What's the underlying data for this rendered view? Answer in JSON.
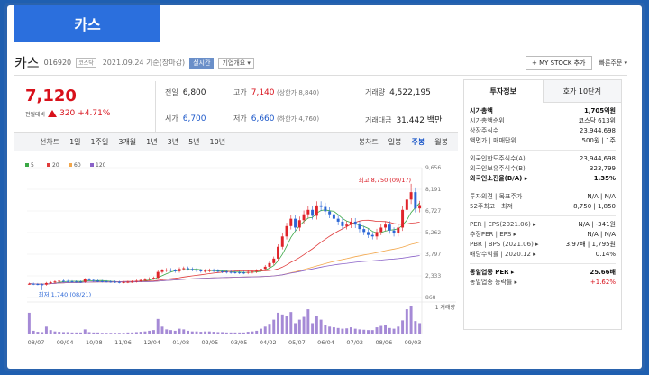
{
  "banner": {
    "title": "카스"
  },
  "header": {
    "name": "카스",
    "code": "016920",
    "market": "코스닥",
    "date": "2021.09.24 기준(장마감)",
    "tag_realtime": "실시간",
    "tag_info": "기업개요 ▾",
    "mystock": "+ MY STOCK 추가",
    "quickbuy": "빠른주문 ▾"
  },
  "price": {
    "current": "7,120",
    "change_label": "전일대비",
    "change": "320",
    "rate": "+4.71%"
  },
  "quote": {
    "prev_close": {
      "label": "전일",
      "value": "6,800"
    },
    "high": {
      "label": "고가",
      "value": "7,140",
      "sub": "(상한가 8,840)"
    },
    "volume": {
      "label": "거래량",
      "value": "4,522,195"
    },
    "open": {
      "label": "시가",
      "value": "6,700"
    },
    "low": {
      "label": "저가",
      "value": "6,660",
      "sub": "(하한가 4,760)"
    },
    "amount": {
      "label": "거래대금",
      "value": "31,442 백만"
    }
  },
  "periods": {
    "label": "선차트",
    "items": [
      "1일",
      "1주일",
      "3개월",
      "1년",
      "3년",
      "5년",
      "10년"
    ],
    "active_index": 2,
    "candle_label": "봉차트",
    "candle_items": [
      "일봉",
      "주봉",
      "월봉"
    ],
    "candle_active_index": 1
  },
  "chart_data": {
    "type": "candlestick",
    "legend": [
      {
        "name": "5",
        "color": "#3aa845"
      },
      {
        "name": "20",
        "color": "#e03b3b"
      },
      {
        "name": "60",
        "color": "#f2a64a"
      },
      {
        "name": "120",
        "color": "#8a62c8"
      }
    ],
    "y_ticks": [
      "9,656",
      "8,191",
      "6,727",
      "5,262",
      "3,797",
      "2,333",
      "868"
    ],
    "y_tick_values": [
      9656,
      8191,
      6727,
      5262,
      3797,
      2333,
      868
    ],
    "ylim": [
      868,
      9656
    ],
    "x_ticks": [
      "08/07",
      "09/04",
      "10/08",
      "11/06",
      "12/04",
      "01/08",
      "02/05",
      "03/05",
      "04/02",
      "05/07",
      "06/04",
      "07/02",
      "08/06",
      "09/03"
    ],
    "max_label": "최고 8,750 (09/17)",
    "min_label": "최저 1,740 (08/21)",
    "volume_label": "1 거래량",
    "closes": [
      1800,
      1780,
      1760,
      1740,
      1850,
      1900,
      1950,
      2000,
      1980,
      1960,
      1950,
      1940,
      1930,
      2100,
      2050,
      2000,
      1980,
      1960,
      1950,
      1940,
      1920,
      1900,
      1910,
      1930,
      1950,
      2000,
      2050,
      2100,
      2150,
      2200,
      2600,
      2700,
      2750,
      2700,
      2650,
      2800,
      2850,
      2800,
      2750,
      2700,
      2650,
      2680,
      2720,
      2680,
      2650,
      2620,
      2600,
      2580,
      2570,
      2560,
      2550,
      2600,
      2620,
      2680,
      2800,
      2950,
      3200,
      3500,
      4300,
      5000,
      5700,
      6200,
      5600,
      6100,
      6500,
      6800,
      6400,
      7100,
      7000,
      6700,
      6500,
      6200,
      6000,
      5700,
      5800,
      6000,
      5800,
      5500,
      5300,
      5100,
      5000,
      5300,
      5600,
      5800,
      5400,
      5200,
      5600,
      6800,
      7500,
      8000,
      6900,
      7120
    ],
    "volumes": [
      60,
      8,
      5,
      4,
      20,
      10,
      6,
      5,
      4,
      4,
      3,
      3,
      3,
      12,
      4,
      3,
      3,
      2,
      2,
      2,
      2,
      2,
      2,
      3,
      3,
      4,
      5,
      6,
      8,
      10,
      42,
      20,
      12,
      10,
      8,
      14,
      12,
      8,
      6,
      6,
      5,
      6,
      6,
      5,
      4,
      4,
      3,
      3,
      3,
      3,
      3,
      5,
      6,
      8,
      14,
      20,
      28,
      40,
      60,
      55,
      50,
      62,
      30,
      40,
      48,
      70,
      30,
      52,
      40,
      26,
      20,
      18,
      16,
      14,
      15,
      18,
      14,
      12,
      11,
      10,
      10,
      18,
      22,
      26,
      16,
      14,
      20,
      38,
      70,
      78,
      36,
      30
    ]
  },
  "side": {
    "tab_invest": "투자정보",
    "tab_consensus": "호가 10단계",
    "rows": [
      {
        "k": "시가총액",
        "v": "1,705억원",
        "bold": true
      },
      {
        "k": "시가총액순위",
        "v": "코스닥 613위"
      },
      {
        "k": "상장주식수",
        "v": "23,944,698"
      },
      {
        "k": "액면가 | 매매단위",
        "v": "500원 | 1주"
      },
      {
        "gap": true
      },
      {
        "k": "외국인한도주식수(A)",
        "v": "23,944,698"
      },
      {
        "k": "외국인보유주식수(B)",
        "v": "323,799"
      },
      {
        "k": "외국인소진율(B/A) ▸",
        "v": "1.35%",
        "bold": true
      },
      {
        "gap": true
      },
      {
        "k": "투자의견 | 목표주가",
        "v": "N/A | N/A"
      },
      {
        "k": "52주최고 | 최저",
        "v": "8,750 | 1,850"
      },
      {
        "gap": true
      },
      {
        "k": "PER | EPS(2021.06) ▸",
        "v": "N/A | -341원"
      },
      {
        "k": "추정PER | EPS ▸",
        "v": "N/A | N/A"
      },
      {
        "k": "PBR | BPS (2021.06) ▸",
        "v": "3.97배 | 1,795원"
      },
      {
        "k": "배당수익률 | 2020.12 ▸",
        "v": "0.14%"
      },
      {
        "gap": true
      },
      {
        "k": "동일업종 PER ▸",
        "v": "25.66배",
        "bold": true
      },
      {
        "k": "동일업종 등락률 ▸",
        "v": "+1.62%",
        "red": true
      }
    ]
  }
}
